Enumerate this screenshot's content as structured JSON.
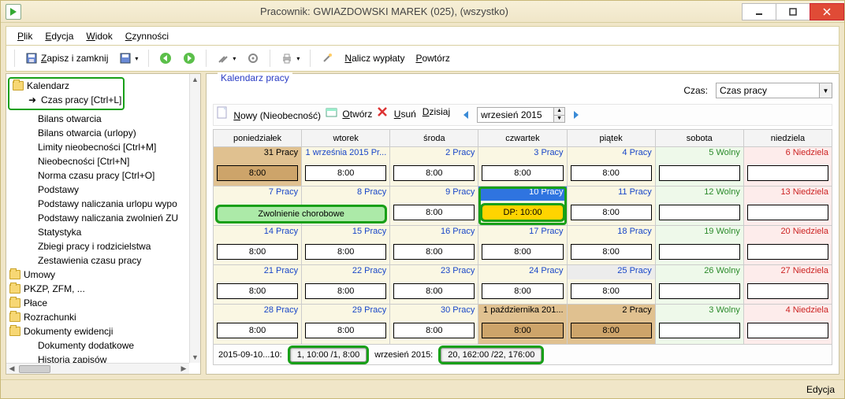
{
  "window": {
    "title": "Pracownik: GWIAZDOWSKI MAREK (025), (wszystko)",
    "status": "Edycja"
  },
  "menu": {
    "plik": "Plik",
    "edycja": "Edycja",
    "widok": "Widok",
    "czynnosci": "Czynności"
  },
  "toolbar": {
    "save_close": "Zapisz i zamknij",
    "nalicz": "Nalicz wypłaty",
    "powtorz": "Powtórz"
  },
  "tree": {
    "kalendarz": "Kalendarz",
    "czas_pracy": "Czas pracy [Ctrl+L]",
    "bilans_otwarcia": "Bilans otwarcia",
    "bilans_otwarcia_urlopy": "Bilans otwarcia (urlopy)",
    "limity": "Limity nieobecności [Ctrl+M]",
    "nieobecnosci": "Nieobecności [Ctrl+N]",
    "norma": "Norma czasu pracy [Ctrl+O]",
    "podstawy": "Podstawy",
    "podst_url": "Podstawy naliczania urlopu wypo",
    "podst_zwol": "Podstawy naliczania zwolnień ZU",
    "statystyka": "Statystyka",
    "zbiegi": "Zbiegi pracy i rodzicielstwa",
    "zest": "Zestawienia czasu pracy",
    "umowy": "Umowy",
    "pkzp": "PKZP, ZFM, ...",
    "place": "Płace",
    "rozrachunki": "Rozrachunki",
    "dok_ewid": "Dokumenty ewidencji",
    "dok_dod": "Dokumenty dodatkowe",
    "historia": "Historia zapisów"
  },
  "panel": {
    "legend": "Kalendarz pracy",
    "czas_label": "Czas:",
    "czas_value": "Czas pracy",
    "cal_toolbar": {
      "nowy": "Nowy (Nieobecność)",
      "otworz": "Otwórz",
      "usun": "Usuń",
      "dzisiaj": "Dzisiaj",
      "month": "wrzesień 2015"
    },
    "headers": [
      "poniedziałek",
      "wtorek",
      "środa",
      "czwartek",
      "piątek",
      "sobota",
      "niedziela"
    ],
    "rows": [
      [
        {
          "date": "31 Pracy",
          "bg": "bg-prev",
          "txt": "",
          "box": "8:00",
          "box_cls": "box-tan"
        },
        {
          "date": "1 września 2015 Pr...",
          "bg": "bg-work",
          "txt": "txt-blue",
          "box": "8:00"
        },
        {
          "date": "2 Pracy",
          "bg": "bg-work",
          "txt": "txt-blue",
          "box": "8:00"
        },
        {
          "date": "3 Pracy",
          "bg": "bg-work",
          "txt": "txt-blue",
          "box": "8:00"
        },
        {
          "date": "4 Pracy",
          "bg": "bg-work",
          "txt": "txt-blue",
          "box": "8:00"
        },
        {
          "date": "5 Wolny",
          "bg": "bg-sat",
          "txt": "txt-green",
          "box": ""
        },
        {
          "date": "6 Niedziela",
          "bg": "bg-sun",
          "txt": "txt-red",
          "box": ""
        }
      ],
      [
        {
          "date": "7 Pracy",
          "bg": "bg-work",
          "txt": "txt-blue",
          "box": "Zwolnienie chorobowe",
          "box_cls": "box-green",
          "hl": true,
          "span": 2
        },
        {
          "date": "8 Pracy",
          "bg": "bg-work",
          "txt": "txt-blue",
          "box": "__merged__"
        },
        {
          "date": "9 Pracy",
          "bg": "bg-work",
          "txt": "txt-blue",
          "box": "8:00"
        },
        {
          "date": "10 Pracy",
          "bg": "bg-work",
          "txt": "txt-blue",
          "box": "DP: 10:00",
          "box_cls": "box-yellow",
          "hl": true,
          "date_cls": "date-blue"
        },
        {
          "date": "11 Pracy",
          "bg": "bg-work",
          "txt": "txt-blue",
          "box": "8:00"
        },
        {
          "date": "12 Wolny",
          "bg": "bg-sat",
          "txt": "txt-green",
          "box": ""
        },
        {
          "date": "13 Niedziela",
          "bg": "bg-sun",
          "txt": "txt-red",
          "box": ""
        }
      ],
      [
        {
          "date": "14 Pracy",
          "bg": "bg-work",
          "txt": "txt-blue",
          "box": "8:00"
        },
        {
          "date": "15 Pracy",
          "bg": "bg-work",
          "txt": "txt-blue",
          "box": "8:00"
        },
        {
          "date": "16 Pracy",
          "bg": "bg-work",
          "txt": "txt-blue",
          "box": "8:00"
        },
        {
          "date": "17 Pracy",
          "bg": "bg-work",
          "txt": "txt-blue",
          "box": "8:00"
        },
        {
          "date": "18 Pracy",
          "bg": "bg-work",
          "txt": "txt-blue",
          "box": "8:00"
        },
        {
          "date": "19 Wolny",
          "bg": "bg-sat",
          "txt": "txt-green",
          "box": ""
        },
        {
          "date": "20 Niedziela",
          "bg": "bg-sun",
          "txt": "txt-red",
          "box": ""
        }
      ],
      [
        {
          "date": "21 Pracy",
          "bg": "bg-work",
          "txt": "txt-blue",
          "box": "8:00"
        },
        {
          "date": "22 Pracy",
          "bg": "bg-work",
          "txt": "txt-blue",
          "box": "8:00"
        },
        {
          "date": "23 Pracy",
          "bg": "bg-work",
          "txt": "txt-blue",
          "box": "8:00"
        },
        {
          "date": "24 Pracy",
          "bg": "bg-work",
          "txt": "txt-blue",
          "box": "8:00"
        },
        {
          "date": "25 Pracy",
          "bg": "bg-work",
          "txt": "txt-blue",
          "box": "8:00",
          "date_cls": "date-grey"
        },
        {
          "date": "26 Wolny",
          "bg": "bg-sat",
          "txt": "txt-green",
          "box": ""
        },
        {
          "date": "27 Niedziela",
          "bg": "bg-sun",
          "txt": "txt-red",
          "box": ""
        }
      ],
      [
        {
          "date": "28 Pracy",
          "bg": "bg-work",
          "txt": "txt-blue",
          "box": "8:00"
        },
        {
          "date": "29 Pracy",
          "bg": "bg-work",
          "txt": "txt-blue",
          "box": "8:00"
        },
        {
          "date": "30 Pracy",
          "bg": "bg-work",
          "txt": "txt-blue",
          "box": "8:00"
        },
        {
          "date": "1 października 201...",
          "bg": "bg-prev",
          "txt": "",
          "box": "8:00",
          "box_cls": "box-tan"
        },
        {
          "date": "2 Pracy",
          "bg": "bg-prev",
          "txt": "",
          "box": "8:00",
          "box_cls": "box-tan"
        },
        {
          "date": "3 Wolny",
          "bg": "bg-sat",
          "txt": "txt-green",
          "box": ""
        },
        {
          "date": "4 Niedziela",
          "bg": "bg-sun",
          "txt": "txt-red",
          "box": ""
        }
      ]
    ],
    "summary": {
      "left_label": "2015-09-10...10:",
      "left_value": "1, 10:00 /1, 8:00",
      "right_label": "wrzesień 2015:",
      "right_value": "20, 162:00 /22, 176:00"
    }
  },
  "colors": {
    "highlight": "#18a018",
    "work_bg": "#faf7e3",
    "sat_bg": "#eef9ea",
    "sun_bg": "#fdeceb",
    "prev_bg": "#e0c190",
    "sel_blue": "#2f74e0",
    "yellow": "#ffd400",
    "green": "#aceaa8",
    "tan": "#cda46a"
  }
}
